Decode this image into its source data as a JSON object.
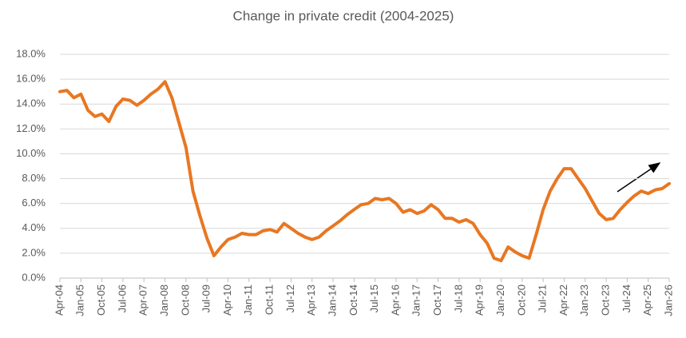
{
  "chart_data": {
    "type": "line",
    "title": "Change in private credit (2004-2025)",
    "categories": [
      "Apr-04",
      null,
      null,
      "Jan-05",
      null,
      null,
      "Oct-05",
      null,
      null,
      "Jul-06",
      null,
      null,
      "Apr-07",
      null,
      null,
      "Jan-08",
      null,
      null,
      "Oct-08",
      null,
      null,
      "Jul-09",
      null,
      null,
      "Apr-10",
      null,
      null,
      "Jan-11",
      null,
      null,
      "Oct-11",
      null,
      null,
      "Jul-12",
      null,
      null,
      "Apr-13",
      null,
      null,
      "Jan-14",
      null,
      null,
      "Oct-14",
      null,
      null,
      "Jul-15",
      null,
      null,
      "Apr-16",
      null,
      null,
      "Jan-17",
      null,
      null,
      "Oct-17",
      null,
      null,
      "Jul-18",
      null,
      null,
      "Apr-19",
      null,
      null,
      "Jan-20",
      null,
      null,
      "Oct-20",
      null,
      null,
      "Jul-21",
      null,
      null,
      "Apr-22",
      null,
      null,
      "Jan-23",
      null,
      null,
      "Oct-23",
      null,
      null,
      "Jul-24",
      null,
      null,
      "Apr-25",
      null,
      null,
      "Jan-26"
    ],
    "values": [
      15.0,
      15.1,
      14.5,
      14.8,
      13.5,
      13.0,
      13.2,
      12.6,
      13.8,
      14.4,
      14.3,
      13.9,
      14.3,
      14.8,
      15.2,
      15.8,
      14.5,
      12.5,
      10.5,
      7.0,
      5.0,
      3.2,
      1.8,
      2.5,
      3.1,
      3.3,
      3.6,
      3.5,
      3.5,
      3.8,
      3.9,
      3.7,
      4.4,
      4.0,
      3.6,
      3.3,
      3.1,
      3.3,
      3.8,
      4.2,
      4.6,
      5.1,
      5.5,
      5.9,
      6.0,
      6.4,
      6.3,
      6.4,
      6.0,
      5.3,
      5.5,
      5.2,
      5.4,
      5.9,
      5.5,
      4.8,
      4.8,
      4.5,
      4.7,
      4.4,
      3.5,
      2.8,
      1.6,
      1.4,
      2.5,
      2.1,
      1.8,
      1.6,
      3.5,
      5.5,
      7.0,
      8.0,
      8.8,
      8.8,
      8.0,
      7.2,
      6.2,
      5.2,
      4.7,
      4.8,
      5.5,
      6.1,
      6.6,
      7.0,
      6.8,
      7.1,
      7.2,
      7.6
    ],
    "color": "#e87722",
    "ylim": [
      0,
      18
    ],
    "yticks": [
      {
        "value": 0,
        "label": "0.0%"
      },
      {
        "value": 2,
        "label": "2.0%"
      },
      {
        "value": 4,
        "label": "4.0%"
      },
      {
        "value": 6,
        "label": "6.0%"
      },
      {
        "value": 8,
        "label": "8.0%"
      },
      {
        "value": 10,
        "label": "10.0%"
      },
      {
        "value": 12,
        "label": "12.0%"
      },
      {
        "value": 14,
        "label": "14.0%"
      },
      {
        "value": 16,
        "label": "16.0%"
      },
      {
        "value": 18,
        "label": "18.0%"
      }
    ],
    "grid": true
  }
}
